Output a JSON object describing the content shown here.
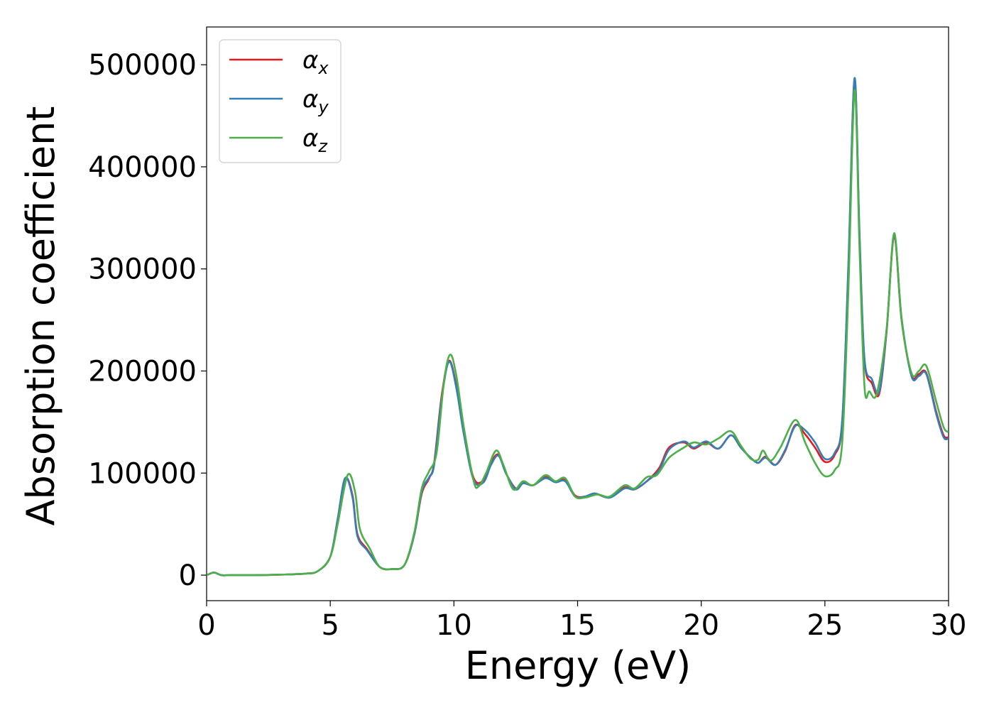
{
  "chart_data": {
    "type": "line",
    "title": "",
    "xlabel": "Energy (eV)",
    "ylabel": "Absorption coefficient",
    "xlim": [
      0,
      30
    ],
    "ylim": [
      -25000,
      537000
    ],
    "xticks": [
      0,
      5,
      10,
      15,
      20,
      25,
      30
    ],
    "yticks": [
      0,
      100000,
      200000,
      300000,
      400000,
      500000
    ],
    "grid": false,
    "legend_position": "top-left",
    "series": [
      {
        "name": "α_x",
        "name_base": "α",
        "name_sub": "x",
        "color": "#e41a1c",
        "points": [
          [
            0,
            0
          ],
          [
            0.3,
            2500
          ],
          [
            0.6,
            0
          ],
          [
            1,
            0
          ],
          [
            2,
            0
          ],
          [
            3,
            500
          ],
          [
            4,
            1500
          ],
          [
            4.5,
            4000
          ],
          [
            5,
            18000
          ],
          [
            5.3,
            55000
          ],
          [
            5.6,
            95000
          ],
          [
            5.9,
            78000
          ],
          [
            6.1,
            40000
          ],
          [
            6.5,
            25000
          ],
          [
            7,
            8000
          ],
          [
            7.5,
            6000
          ],
          [
            8,
            10000
          ],
          [
            8.4,
            40000
          ],
          [
            8.7,
            80000
          ],
          [
            9.0,
            95000
          ],
          [
            9.2,
            110000
          ],
          [
            9.5,
            175000
          ],
          [
            9.8,
            210000
          ],
          [
            10.1,
            185000
          ],
          [
            10.4,
            140000
          ],
          [
            10.8,
            95000
          ],
          [
            11.2,
            93000
          ],
          [
            11.5,
            110000
          ],
          [
            11.8,
            118000
          ],
          [
            12.1,
            100000
          ],
          [
            12.5,
            85000
          ],
          [
            12.8,
            91000
          ],
          [
            13.2,
            88000
          ],
          [
            13.7,
            96000
          ],
          [
            14.1,
            92000
          ],
          [
            14.5,
            93000
          ],
          [
            14.9,
            78000
          ],
          [
            15.3,
            77000
          ],
          [
            15.7,
            80000
          ],
          [
            16.3,
            76000
          ],
          [
            16.9,
            86000
          ],
          [
            17.3,
            84000
          ],
          [
            17.8,
            92000
          ],
          [
            18.3,
            105000
          ],
          [
            18.7,
            125000
          ],
          [
            19.3,
            130000
          ],
          [
            19.7,
            124000
          ],
          [
            20.2,
            130000
          ],
          [
            20.7,
            124000
          ],
          [
            21.2,
            137000
          ],
          [
            21.6,
            125000
          ],
          [
            22.0,
            115000
          ],
          [
            22.3,
            110000
          ],
          [
            22.6,
            116000
          ],
          [
            23.0,
            108000
          ],
          [
            23.4,
            122000
          ],
          [
            23.8,
            147000
          ],
          [
            24.2,
            138000
          ],
          [
            24.6,
            125000
          ],
          [
            25.0,
            111000
          ],
          [
            25.4,
            118000
          ],
          [
            25.7,
            150000
          ],
          [
            25.95,
            300000
          ],
          [
            26.2,
            485000
          ],
          [
            26.4,
            330000
          ],
          [
            26.6,
            210000
          ],
          [
            26.9,
            188000
          ],
          [
            27.2,
            178000
          ],
          [
            27.5,
            240000
          ],
          [
            27.8,
            332000
          ],
          [
            28.1,
            250000
          ],
          [
            28.5,
            196000
          ],
          [
            28.8,
            197000
          ],
          [
            29.1,
            198000
          ],
          [
            29.5,
            160000
          ],
          [
            29.8,
            137000
          ],
          [
            30,
            135000
          ]
        ]
      },
      {
        "name": "α_y",
        "name_base": "α",
        "name_sub": "y",
        "color": "#377eb8",
        "points": [
          [
            0,
            0
          ],
          [
            0.3,
            2500
          ],
          [
            0.6,
            0
          ],
          [
            1,
            0
          ],
          [
            2,
            0
          ],
          [
            3,
            500
          ],
          [
            4,
            1500
          ],
          [
            4.5,
            4000
          ],
          [
            5,
            18000
          ],
          [
            5.3,
            55000
          ],
          [
            5.6,
            95000
          ],
          [
            5.9,
            76000
          ],
          [
            6.1,
            38000
          ],
          [
            6.5,
            24000
          ],
          [
            7,
            8000
          ],
          [
            7.5,
            6000
          ],
          [
            8,
            10000
          ],
          [
            8.4,
            40000
          ],
          [
            8.7,
            82000
          ],
          [
            9.0,
            96000
          ],
          [
            9.2,
            108000
          ],
          [
            9.5,
            172000
          ],
          [
            9.8,
            209000
          ],
          [
            10.1,
            183000
          ],
          [
            10.4,
            138000
          ],
          [
            10.8,
            93000
          ],
          [
            11.2,
            91000
          ],
          [
            11.5,
            108000
          ],
          [
            11.8,
            117000
          ],
          [
            12.1,
            100000
          ],
          [
            12.5,
            84000
          ],
          [
            12.8,
            90000
          ],
          [
            13.2,
            88000
          ],
          [
            13.7,
            95000
          ],
          [
            14.1,
            91000
          ],
          [
            14.5,
            92000
          ],
          [
            14.9,
            77000
          ],
          [
            15.3,
            77000
          ],
          [
            15.7,
            80000
          ],
          [
            16.3,
            76000
          ],
          [
            16.9,
            85000
          ],
          [
            17.3,
            84000
          ],
          [
            17.8,
            92000
          ],
          [
            18.3,
            103000
          ],
          [
            18.7,
            123000
          ],
          [
            19.3,
            131000
          ],
          [
            19.7,
            125000
          ],
          [
            20.2,
            131000
          ],
          [
            20.7,
            124000
          ],
          [
            21.2,
            137000
          ],
          [
            21.6,
            125000
          ],
          [
            22.0,
            115000
          ],
          [
            22.3,
            110000
          ],
          [
            22.6,
            115000
          ],
          [
            23.0,
            108000
          ],
          [
            23.4,
            123000
          ],
          [
            23.8,
            146000
          ],
          [
            24.2,
            142000
          ],
          [
            24.6,
            130000
          ],
          [
            25.0,
            114000
          ],
          [
            25.4,
            120000
          ],
          [
            25.7,
            152000
          ],
          [
            25.95,
            305000
          ],
          [
            26.2,
            487000
          ],
          [
            26.4,
            335000
          ],
          [
            26.6,
            212000
          ],
          [
            26.9,
            192000
          ],
          [
            27.2,
            180000
          ],
          [
            27.5,
            242000
          ],
          [
            27.8,
            333000
          ],
          [
            28.1,
            252000
          ],
          [
            28.5,
            195000
          ],
          [
            28.8,
            195000
          ],
          [
            29.1,
            197000
          ],
          [
            29.5,
            158000
          ],
          [
            29.8,
            135000
          ],
          [
            30,
            134000
          ]
        ]
      },
      {
        "name": "α_z",
        "name_base": "α",
        "name_sub": "z",
        "color": "#4daf4a",
        "points": [
          [
            0,
            0
          ],
          [
            0.3,
            2500
          ],
          [
            0.6,
            0
          ],
          [
            1,
            0
          ],
          [
            2,
            0
          ],
          [
            3,
            500
          ],
          [
            4,
            1500
          ],
          [
            4.5,
            4000
          ],
          [
            5,
            18000
          ],
          [
            5.3,
            50000
          ],
          [
            5.7,
            98000
          ],
          [
            6.0,
            82000
          ],
          [
            6.2,
            45000
          ],
          [
            6.6,
            26000
          ],
          [
            7,
            8000
          ],
          [
            7.5,
            6000
          ],
          [
            8,
            10000
          ],
          [
            8.4,
            42000
          ],
          [
            8.7,
            85000
          ],
          [
            9.0,
            102000
          ],
          [
            9.3,
            120000
          ],
          [
            9.6,
            190000
          ],
          [
            9.85,
            216000
          ],
          [
            10.1,
            195000
          ],
          [
            10.4,
            145000
          ],
          [
            10.8,
            92000
          ],
          [
            11.0,
            87000
          ],
          [
            11.3,
            100000
          ],
          [
            11.7,
            122000
          ],
          [
            12.0,
            108000
          ],
          [
            12.4,
            84000
          ],
          [
            12.8,
            92000
          ],
          [
            13.2,
            88000
          ],
          [
            13.7,
            98000
          ],
          [
            14.1,
            92000
          ],
          [
            14.5,
            95000
          ],
          [
            14.9,
            77000
          ],
          [
            15.3,
            76000
          ],
          [
            15.8,
            79000
          ],
          [
            16.3,
            77000
          ],
          [
            16.9,
            88000
          ],
          [
            17.3,
            85000
          ],
          [
            17.8,
            96000
          ],
          [
            18.2,
            98000
          ],
          [
            18.7,
            115000
          ],
          [
            19.3,
            125000
          ],
          [
            19.7,
            130000
          ],
          [
            20.2,
            128000
          ],
          [
            20.7,
            134000
          ],
          [
            21.2,
            141000
          ],
          [
            21.6,
            127000
          ],
          [
            22.0,
            114000
          ],
          [
            22.3,
            113000
          ],
          [
            22.5,
            122000
          ],
          [
            22.8,
            112000
          ],
          [
            23.2,
            125000
          ],
          [
            23.8,
            152000
          ],
          [
            24.2,
            130000
          ],
          [
            24.6,
            110000
          ],
          [
            25.0,
            97000
          ],
          [
            25.4,
            103000
          ],
          [
            25.7,
            130000
          ],
          [
            25.95,
            280000
          ],
          [
            26.2,
            475000
          ],
          [
            26.4,
            320000
          ],
          [
            26.6,
            185000
          ],
          [
            26.8,
            180000
          ],
          [
            27.1,
            178000
          ],
          [
            27.5,
            242000
          ],
          [
            27.8,
            335000
          ],
          [
            28.1,
            250000
          ],
          [
            28.5,
            198000
          ],
          [
            28.8,
            200000
          ],
          [
            29.1,
            205000
          ],
          [
            29.5,
            170000
          ],
          [
            29.8,
            145000
          ],
          [
            30,
            140000
          ]
        ]
      }
    ]
  }
}
